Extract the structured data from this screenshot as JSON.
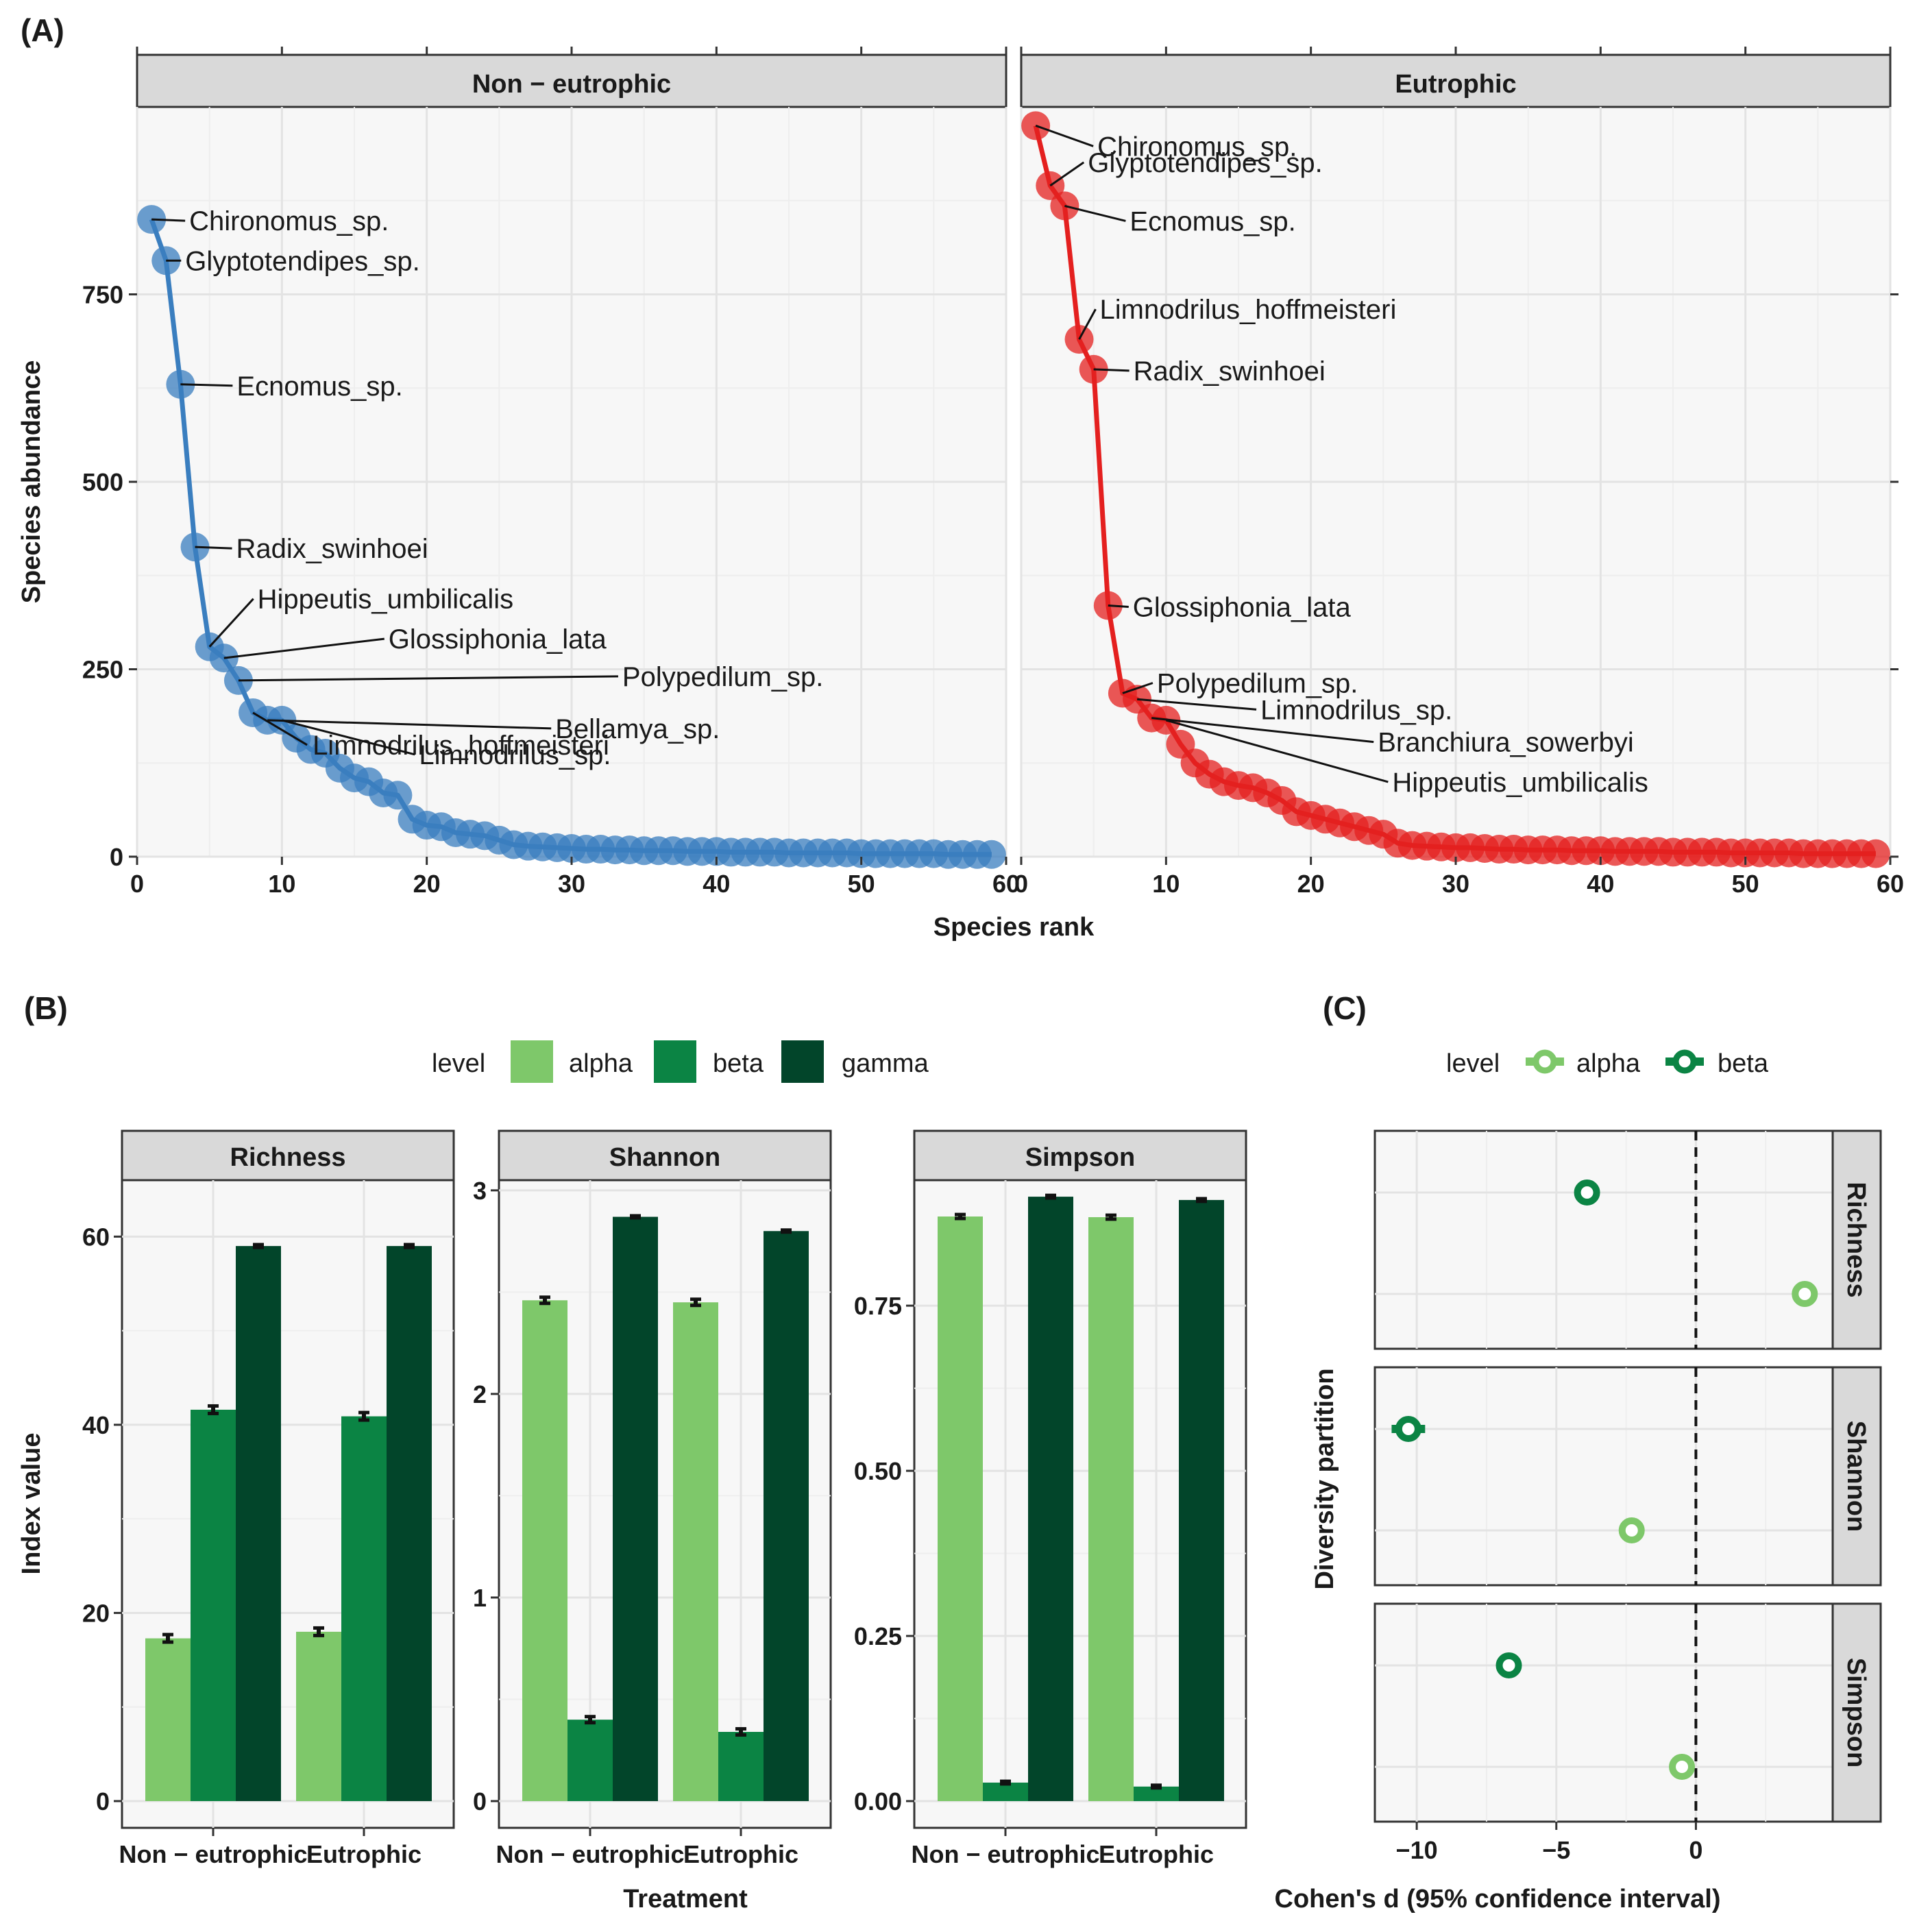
{
  "figure": {
    "panel_labels": [
      "(A)",
      "(B)",
      "(C)"
    ]
  },
  "colors": {
    "non_eutrophic": "#3a7ebf",
    "eutrophic": "#e4201f",
    "alpha": "#7ec86a",
    "beta": "#0b8444",
    "gamma": "#02452a",
    "panel_bg": "#f7f7f7",
    "strip_bg": "#d9d9d9"
  },
  "chart_data": [
    {
      "id": "A",
      "type": "line",
      "title": "(A)",
      "xlabel": "Species rank",
      "ylabel": "Species abundance",
      "xlim": [
        0,
        60
      ],
      "ylim": [
        0,
        1000
      ],
      "xticks": [
        0,
        10,
        20,
        30,
        40,
        50,
        60
      ],
      "yticks": [
        0,
        250,
        500,
        750
      ],
      "panels": [
        {
          "strip": "Non − eutrophic",
          "color_key": "non_eutrophic",
          "ranks": [
            1,
            2,
            3,
            4,
            5,
            6,
            7,
            8,
            9,
            10,
            11,
            12,
            13,
            14,
            15,
            16,
            17,
            18,
            19,
            20,
            21,
            22,
            23,
            24,
            25,
            26,
            27,
            28,
            29,
            30,
            31,
            32,
            33,
            34,
            35,
            36,
            37,
            38,
            39,
            40,
            41,
            42,
            43,
            44,
            45,
            46,
            47,
            48,
            49,
            50,
            51,
            52,
            53,
            54,
            55,
            56,
            57,
            58,
            59
          ],
          "values": [
            850,
            795,
            630,
            413,
            280,
            265,
            235,
            192,
            182,
            182,
            158,
            143,
            138,
            118,
            105,
            100,
            85,
            82,
            50,
            42,
            40,
            32,
            30,
            28,
            22,
            16,
            14,
            13,
            12,
            11,
            10,
            10,
            9,
            9,
            8,
            8,
            8,
            7,
            7,
            7,
            6,
            6,
            6,
            6,
            5,
            5,
            5,
            5,
            5,
            4,
            4,
            4,
            4,
            4,
            4,
            3,
            3,
            3,
            3
          ],
          "labels": [
            {
              "text": "Chironomus_sp.",
              "rank": 1,
              "value": 850
            },
            {
              "text": "Glyptotendipes_sp.",
              "rank": 2,
              "value": 795
            },
            {
              "text": "Ecnomus_sp.",
              "rank": 3,
              "value": 630
            },
            {
              "text": "Radix_swinhoei",
              "rank": 4,
              "value": 413
            },
            {
              "text": "Hippeutis_umbilicalis",
              "rank": 5,
              "value": 280
            },
            {
              "text": "Glossiphonia_lata",
              "rank": 6,
              "value": 265
            },
            {
              "text": "Polypedilum_sp.",
              "rank": 7,
              "value": 235
            },
            {
              "text": "Limnodrilus_hoffmeisteri",
              "rank": 8,
              "value": 192
            },
            {
              "text": "Bellamya_sp.",
              "rank": 9,
              "value": 182
            },
            {
              "text": "Limnodrilus_sp.",
              "rank": 10,
              "value": 182
            }
          ]
        },
        {
          "strip": "Eutrophic",
          "color_key": "eutrophic",
          "ranks": [
            1,
            2,
            3,
            4,
            5,
            6,
            7,
            8,
            9,
            10,
            11,
            12,
            13,
            14,
            15,
            16,
            17,
            18,
            19,
            20,
            21,
            22,
            23,
            24,
            25,
            26,
            27,
            28,
            29,
            30,
            31,
            32,
            33,
            34,
            35,
            36,
            37,
            38,
            39,
            40,
            41,
            42,
            43,
            44,
            45,
            46,
            47,
            48,
            49,
            50,
            51,
            52,
            53,
            54,
            55,
            56,
            57,
            58,
            59
          ],
          "values": [
            975,
            895,
            868,
            690,
            650,
            335,
            218,
            210,
            185,
            182,
            150,
            125,
            110,
            100,
            95,
            92,
            85,
            75,
            60,
            55,
            50,
            45,
            40,
            35,
            30,
            18,
            15,
            14,
            13,
            12,
            12,
            11,
            10,
            10,
            9,
            9,
            9,
            8,
            8,
            8,
            7,
            7,
            7,
            7,
            6,
            6,
            6,
            6,
            5,
            5,
            5,
            5,
            5,
            4,
            4,
            4,
            4,
            4,
            4
          ],
          "labels": [
            {
              "text": "Chironomus_sp.",
              "rank": 1,
              "value": 975
            },
            {
              "text": "Glyptotendipes_sp.",
              "rank": 2,
              "value": 895
            },
            {
              "text": "Ecnomus_sp.",
              "rank": 3,
              "value": 868
            },
            {
              "text": "Limnodrilus_hoffmeisteri",
              "rank": 4,
              "value": 690
            },
            {
              "text": "Radix_swinhoei",
              "rank": 5,
              "value": 650
            },
            {
              "text": "Glossiphonia_lata",
              "rank": 6,
              "value": 335
            },
            {
              "text": "Polypedilum_sp.",
              "rank": 7,
              "value": 218
            },
            {
              "text": "Limnodrilus_sp.",
              "rank": 8,
              "value": 210
            },
            {
              "text": "Branchiura_sowerbyi",
              "rank": 9,
              "value": 185
            },
            {
              "text": "Hippeutis_umbilicalis",
              "rank": 10,
              "value": 182
            }
          ]
        }
      ]
    },
    {
      "id": "B",
      "type": "bar",
      "title": "(B)",
      "xlabel": "Treatment",
      "ylabel": "Index value",
      "legend_title": "level",
      "legend": [
        "alpha",
        "beta",
        "gamma"
      ],
      "categories": [
        "Non − eutrophic",
        "Eutrophic"
      ],
      "facets": [
        {
          "strip": "Richness",
          "ylim": [
            0,
            66
          ],
          "yticks": [
            0,
            20,
            40,
            60
          ],
          "ytick_labels": [
            "0",
            "20",
            "40",
            "60"
          ],
          "series": [
            {
              "name": "alpha",
              "values": [
                17.3,
                18.0
              ],
              "errors": [
                0.4,
                0.4
              ]
            },
            {
              "name": "beta",
              "values": [
                41.6,
                40.9
              ],
              "errors": [
                0.4,
                0.4
              ]
            },
            {
              "name": "gamma",
              "values": [
                59.0,
                59.0
              ],
              "errors": [
                0.15,
                0.15
              ]
            }
          ]
        },
        {
          "strip": "Shannon",
          "ylim": [
            0,
            3.05
          ],
          "yticks": [
            0,
            1,
            2,
            3
          ],
          "ytick_labels": [
            "0",
            "1",
            "2",
            "3"
          ],
          "series": [
            {
              "name": "alpha",
              "values": [
                2.46,
                2.45
              ],
              "errors": [
                0.015,
                0.015
              ]
            },
            {
              "name": "beta",
              "values": [
                0.4,
                0.34
              ],
              "errors": [
                0.015,
                0.015
              ]
            },
            {
              "name": "gamma",
              "values": [
                2.87,
                2.8
              ],
              "errors": [
                0.005,
                0.005
              ]
            }
          ]
        },
        {
          "strip": "Simpson",
          "ylim": [
            0,
            0.94
          ],
          "yticks": [
            0,
            0.25,
            0.5,
            0.75
          ],
          "ytick_labels": [
            "0.00",
            "0.25",
            "0.50",
            "0.75"
          ],
          "series": [
            {
              "name": "alpha",
              "values": [
                0.885,
                0.884
              ],
              "errors": [
                0.003,
                0.003
              ]
            },
            {
              "name": "beta",
              "values": [
                0.028,
                0.022
              ],
              "errors": [
                0.002,
                0.002
              ]
            },
            {
              "name": "gamma",
              "values": [
                0.915,
                0.91
              ],
              "errors": [
                0.002,
                0.002
              ]
            }
          ]
        }
      ]
    },
    {
      "id": "C",
      "type": "scatter",
      "title": "(C)",
      "xlabel": "Cohen's d (95% confidence interval)",
      "ylabel": "Diversity partition",
      "legend_title": "level",
      "legend": [
        "alpha",
        "beta"
      ],
      "xlim": [
        -11.5,
        4.9
      ],
      "xticks": [
        -10,
        -5,
        0
      ],
      "xtick_labels": [
        "−10",
        "−5",
        "0"
      ],
      "reference_line": 0,
      "facets": [
        {
          "strip": "Richness",
          "points": [
            {
              "level": "beta",
              "d": -3.9,
              "ci": [
                -4.2,
                -3.6
              ]
            },
            {
              "level": "alpha",
              "d": 3.9,
              "ci": [
                3.7,
                4.1
              ]
            }
          ]
        },
        {
          "strip": "Shannon",
          "points": [
            {
              "level": "beta",
              "d": -10.3,
              "ci": [
                -10.9,
                -9.7
              ]
            },
            {
              "level": "alpha",
              "d": -2.3,
              "ci": [
                -2.5,
                -2.1
              ]
            }
          ]
        },
        {
          "strip": "Simpson",
          "points": [
            {
              "level": "beta",
              "d": -6.7,
              "ci": [
                -7.0,
                -6.4
              ]
            },
            {
              "level": "alpha",
              "d": -0.5,
              "ci": [
                -0.7,
                -0.3
              ]
            }
          ]
        }
      ]
    }
  ]
}
